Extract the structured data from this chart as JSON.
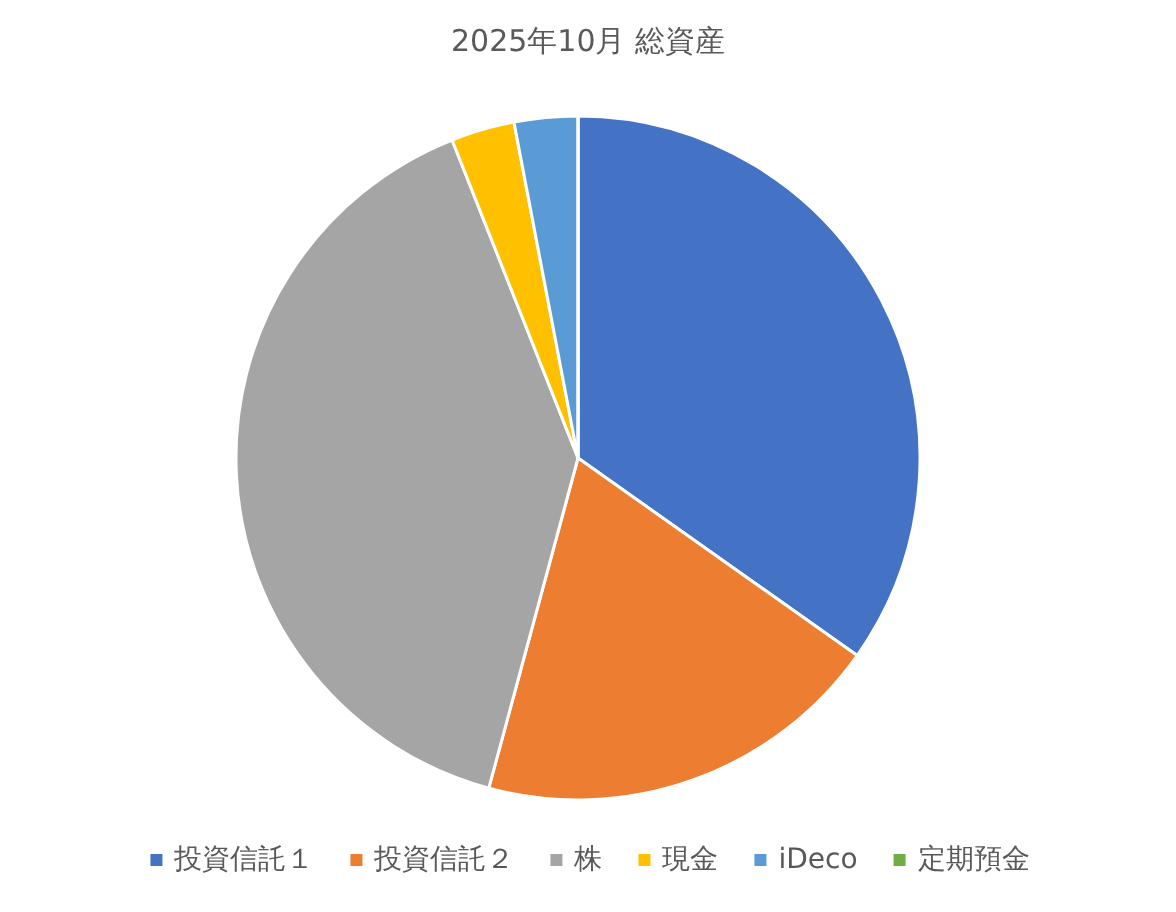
{
  "chart_data": {
    "type": "pie",
    "title": "2025年10月 総資産",
    "categories": [
      "投資信託１",
      "投資信託２",
      "株",
      "現金",
      "iDeco",
      "定期預金"
    ],
    "values": [
      34.8,
      19.4,
      39.8,
      3,
      3,
      0
    ],
    "colors": [
      "#4472c4",
      "#ed7d31",
      "#a5a5a5",
      "#ffc000",
      "#5b9bd5",
      "#70ad47"
    ],
    "legend": "bottom"
  }
}
